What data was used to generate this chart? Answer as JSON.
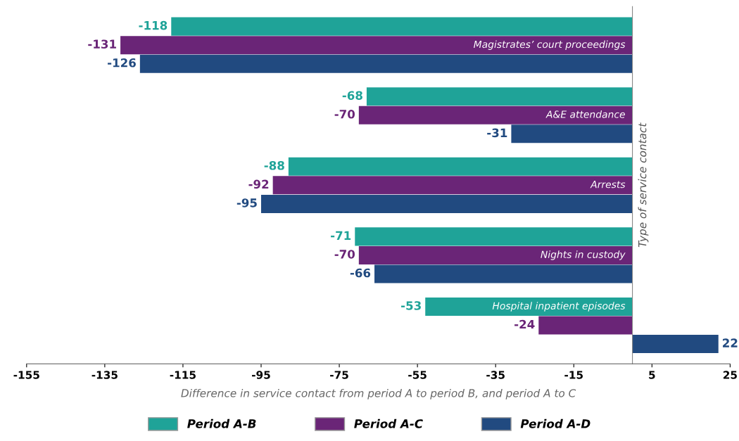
{
  "chart_data": {
    "type": "bar",
    "orientation": "horizontal",
    "categories": [
      "Magistrates’ court proceedings",
      "A&E attendance",
      "Arrests",
      "Nights in custody",
      "Hospital inpatient episodes"
    ],
    "series": [
      {
        "name": "Period A-B",
        "color": "#1fa398",
        "values": [
          -118,
          -68,
          -88,
          -71,
          -53
        ]
      },
      {
        "name": "Period A-C",
        "color": "#6a2577",
        "values": [
          -131,
          -70,
          -92,
          -70,
          -24
        ]
      },
      {
        "name": "Period A-D",
        "color": "#214a80",
        "values": [
          -126,
          -31,
          -95,
          -66,
          22
        ]
      }
    ],
    "xlim": [
      -155,
      25
    ],
    "xticks": [
      -155,
      -135,
      -115,
      -95,
      -75,
      -55,
      -35,
      -15,
      5,
      25
    ],
    "xlabel": "Difference in service contact from period A to period B, and period A to C",
    "ylabel": "Type of service contact",
    "data_labels": true,
    "legend": "bottom",
    "grid": false
  }
}
